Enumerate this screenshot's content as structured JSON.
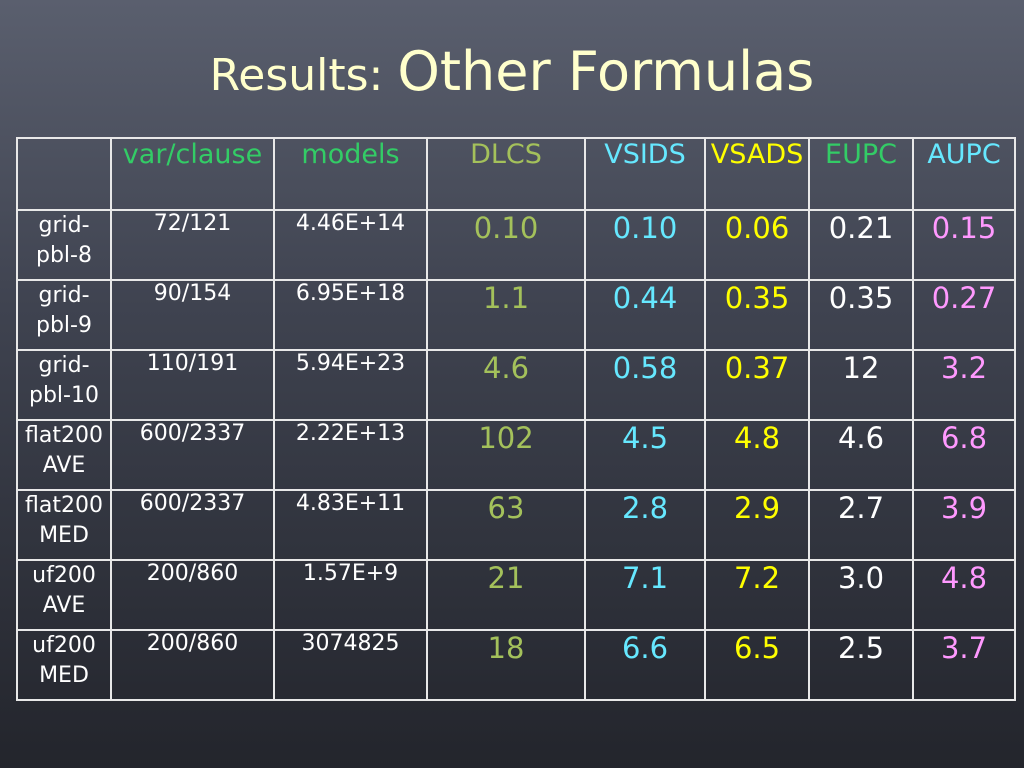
{
  "title": {
    "prefix": "Results: ",
    "main": "Other Formulas"
  },
  "colors": {
    "title": "#ffffcc",
    "DLCS": "#a4c15b",
    "VSIDS": "#66e8ff",
    "VSADS": "#ffff00",
    "EUPC": "#ffffff",
    "AUPC": "#ff99ff",
    "green_header": "#33cc66",
    "grid": "#e8e8e8"
  },
  "table": {
    "headers": [
      "",
      "var/clause",
      "models",
      "DLCS",
      "VSIDS",
      "VSADS",
      "EUPC",
      "AUPC"
    ],
    "rows": [
      {
        "name1": "grid-",
        "name2": "pbl-8",
        "var_clause": "72/121",
        "models": "4.46E+14",
        "DLCS": "0.10",
        "VSIDS": "0.10",
        "VSADS": "0.06",
        "EUPC": "0.21",
        "AUPC": "0.15"
      },
      {
        "name1": "grid-",
        "name2": "pbl-9",
        "var_clause": "90/154",
        "models": "6.95E+18",
        "DLCS": "1.1",
        "VSIDS": "0.44",
        "VSADS": "0.35",
        "EUPC": "0.35",
        "AUPC": "0.27"
      },
      {
        "name1": "grid-",
        "name2": "pbl-10",
        "var_clause": "110/191",
        "models": "5.94E+23",
        "DLCS": "4.6",
        "VSIDS": "0.58",
        "VSADS": "0.37",
        "EUPC": "12",
        "AUPC": "3.2"
      },
      {
        "name1": "flat200",
        "name2": "AVE",
        "var_clause": "600/2337",
        "models": "2.22E+13",
        "DLCS": "102",
        "VSIDS": "4.5",
        "VSADS": "4.8",
        "EUPC": "4.6",
        "AUPC": "6.8"
      },
      {
        "name1": "flat200",
        "name2": "MED",
        "var_clause": "600/2337",
        "models": "4.83E+11",
        "DLCS": "63",
        "VSIDS": "2.8",
        "VSADS": "2.9",
        "EUPC": "2.7",
        "AUPC": "3.9"
      },
      {
        "name1": "uf200",
        "name2": "AVE",
        "var_clause": "200/860",
        "models": "1.57E+9",
        "DLCS": "21",
        "VSIDS": "7.1",
        "VSADS": "7.2",
        "EUPC": "3.0",
        "AUPC": "4.8"
      },
      {
        "name1": "uf200",
        "name2": "MED",
        "var_clause": "200/860",
        "models": "3074825",
        "DLCS": "18",
        "VSIDS": "6.6",
        "VSADS": "6.5",
        "EUPC": "2.5",
        "AUPC": "3.7"
      }
    ]
  }
}
